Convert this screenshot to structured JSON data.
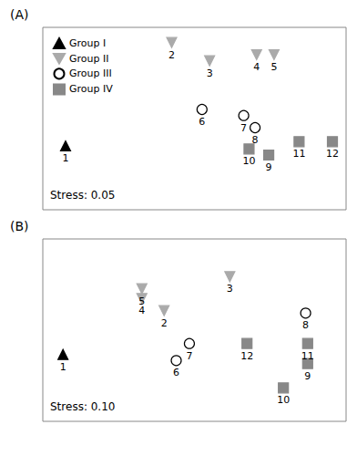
{
  "chart_data": [
    {
      "type": "scatter",
      "title": "(A)",
      "annotation": "Stress: 0.05",
      "xlim": [
        -2,
        2
      ],
      "ylim": [
        -1.5,
        1.5
      ],
      "tick_labels": false,
      "grid": false,
      "legend": "upper left",
      "series": [
        {
          "name": "Group I",
          "marker": "triangle_up",
          "color": "#000000",
          "x": [
            -1.7
          ],
          "y": [
            -0.45
          ],
          "labels": [
            "1"
          ]
        },
        {
          "name": "Group II",
          "marker": "triangle_down",
          "color": "#aaaaaa",
          "x": [
            -0.3,
            0.2,
            0.82,
            1.05
          ],
          "y": [
            1.25,
            0.95,
            1.05,
            1.05
          ],
          "labels": [
            "2",
            "3",
            "4",
            "5"
          ]
        },
        {
          "name": "Group III",
          "marker": "circle_open",
          "color": "#000000",
          "x": [
            0.1,
            0.65,
            0.8
          ],
          "y": [
            0.15,
            0.05,
            -0.15
          ],
          "labels": [
            "6",
            "7",
            "8"
          ]
        },
        {
          "name": "Group IV",
          "marker": "square",
          "color": "#888888",
          "x": [
            0.98,
            0.72,
            1.38,
            1.82
          ],
          "y": [
            -0.6,
            -0.5,
            -0.38,
            -0.38
          ],
          "labels": [
            "9",
            "10",
            "11",
            "12"
          ]
        }
      ]
    },
    {
      "type": "scatter",
      "title": "(B)",
      "annotation": "Stress: 0.10",
      "xlim": [
        -1.5,
        1.5
      ],
      "ylim": [
        -1.5,
        1.5
      ],
      "tick_labels": false,
      "grid": false,
      "series": [
        {
          "name": "Group I",
          "marker": "triangle_up",
          "color": "#000000",
          "x": [
            -1.3
          ],
          "y": [
            -0.4
          ],
          "labels": [
            "1"
          ]
        },
        {
          "name": "Group II",
          "marker": "triangle_down",
          "color": "#aaaaaa",
          "x": [
            -0.3,
            0.35,
            -0.52,
            -0.52
          ],
          "y": [
            0.32,
            0.88,
            0.52,
            0.68
          ],
          "labels": [
            "2",
            "3",
            "4",
            "5"
          ]
        },
        {
          "name": "Group III",
          "marker": "circle_open",
          "color": "#000000",
          "x": [
            -0.18,
            -0.05,
            1.1
          ],
          "y": [
            -0.5,
            -0.22,
            0.28
          ],
          "labels": [
            "6",
            "7",
            "8"
          ]
        },
        {
          "name": "Group IV",
          "marker": "square",
          "color": "#888888",
          "x": [
            1.12,
            0.88,
            1.12,
            0.52
          ],
          "y": [
            -0.55,
            -0.95,
            -0.22,
            -0.22
          ],
          "labels": [
            "9",
            "10",
            "11",
            "12"
          ]
        }
      ]
    }
  ]
}
